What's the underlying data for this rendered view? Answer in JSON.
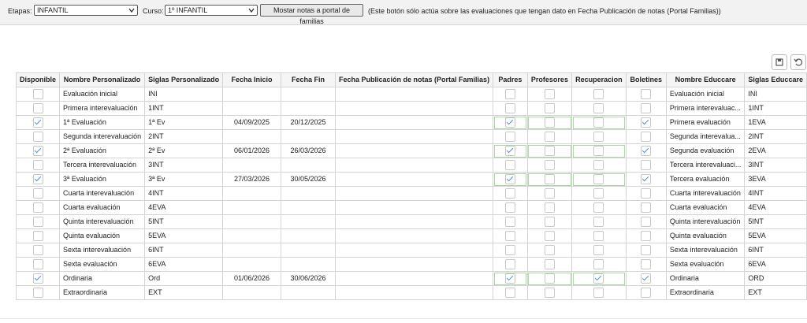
{
  "toolbar": {
    "etapas_label": "Etapas:",
    "etapas_value": "INFANTIL",
    "curso_label": "Curso:",
    "curso_value": "1º INFANTIL",
    "button": "Mostar notas a portal de familias",
    "note": "(Este botón sólo actúa sobre las evaluaciones que tengan dato en Fecha Publicación de notas (Portal Familias))"
  },
  "table": {
    "columns": [
      "Disponible",
      "Nombre Personalizado",
      "Siglas Personalizado",
      "Fecha Inicio",
      "Fecha Fin",
      "Fecha Publicación de notas (Portal Familias)",
      "Padres",
      "Profesores",
      "Recuperacion",
      "Boletines",
      "Nombre Educcare",
      "Siglas Educcare"
    ],
    "rows": [
      {
        "disponible": false,
        "nombre": "Evaluación inicial",
        "siglas": "INI",
        "padres": false,
        "profesores": false,
        "recuperacion": false,
        "boletines": false,
        "nombre_educcare": "Evaluación inicial",
        "siglas_educcare": "INI"
      },
      {
        "disponible": false,
        "nombre": "Primera interevaluación",
        "siglas": "1INT",
        "padres": false,
        "profesores": false,
        "recuperacion": false,
        "boletines": false,
        "nombre_educcare": "Primera interevaluac...",
        "siglas_educcare": "1INT"
      },
      {
        "disponible": true,
        "nombre": "1ª Evaluación",
        "siglas": "1ª Ev",
        "fecha_inicio": "04/09/2025",
        "fecha_fin": "20/12/2025",
        "padres": true,
        "profesores": false,
        "recuperacion": false,
        "boletines": true,
        "nombre_educcare": "Primera evaluación",
        "siglas_educcare": "1EVA"
      },
      {
        "disponible": false,
        "nombre": "Segunda interevaluación",
        "siglas": "2INT",
        "padres": false,
        "profesores": false,
        "recuperacion": false,
        "boletines": false,
        "nombre_educcare": "Segunda interevalua...",
        "siglas_educcare": "2INT"
      },
      {
        "disponible": true,
        "nombre": "2ª Evaluación",
        "siglas": "2ª Ev",
        "fecha_inicio": "06/01/2026",
        "fecha_fin": "26/03/2026",
        "padres": true,
        "profesores": false,
        "recuperacion": false,
        "boletines": true,
        "nombre_educcare": "Segunda evaluación",
        "siglas_educcare": "2EVA"
      },
      {
        "disponible": false,
        "nombre": "Tercera interevaluación",
        "siglas": "3INT",
        "padres": false,
        "profesores": false,
        "recuperacion": false,
        "boletines": false,
        "nombre_educcare": "Tercera interevaluaci...",
        "siglas_educcare": "3INT"
      },
      {
        "disponible": true,
        "nombre": "3ª Evaluación",
        "siglas": "3ª Ev",
        "fecha_inicio": "27/03/2026",
        "fecha_fin": "30/05/2026",
        "padres": true,
        "profesores": false,
        "recuperacion": false,
        "boletines": true,
        "nombre_educcare": "Tercera evaluación",
        "siglas_educcare": "3EVA"
      },
      {
        "disponible": false,
        "nombre": "Cuarta interevaluación",
        "siglas": "4INT",
        "padres": false,
        "profesores": false,
        "recuperacion": false,
        "boletines": false,
        "nombre_educcare": "Cuarta interevaluación",
        "siglas_educcare": "4INT"
      },
      {
        "disponible": false,
        "nombre": "Cuarta evaluación",
        "siglas": "4EVA",
        "padres": false,
        "profesores": false,
        "recuperacion": false,
        "boletines": false,
        "nombre_educcare": "Cuarta evaluación",
        "siglas_educcare": "4EVA"
      },
      {
        "disponible": false,
        "nombre": "Quinta interevaluación",
        "siglas": "5INT",
        "padres": false,
        "profesores": false,
        "recuperacion": false,
        "boletines": false,
        "nombre_educcare": "Quinta interevaluación",
        "siglas_educcare": "5INT"
      },
      {
        "disponible": false,
        "nombre": "Quinta evaluación",
        "siglas": "5EVA",
        "padres": false,
        "profesores": false,
        "recuperacion": false,
        "boletines": false,
        "nombre_educcare": "Quinta evaluación",
        "siglas_educcare": "5EVA"
      },
      {
        "disponible": false,
        "nombre": "Sexta interevaluación",
        "siglas": "6INT",
        "padres": false,
        "profesores": false,
        "recuperacion": false,
        "boletines": false,
        "nombre_educcare": "Sexta interevaluación",
        "siglas_educcare": "6INT"
      },
      {
        "disponible": false,
        "nombre": "Sexta evaluación",
        "siglas": "6EVA",
        "padres": false,
        "profesores": false,
        "recuperacion": false,
        "boletines": false,
        "nombre_educcare": "Sexta evaluación",
        "siglas_educcare": "6EVA"
      },
      {
        "disponible": true,
        "nombre": "Ordinaria",
        "siglas": "Ord",
        "fecha_inicio": "01/06/2026",
        "fecha_fin": "30/06/2026",
        "padres": true,
        "profesores": false,
        "recuperacion": true,
        "boletines": true,
        "nombre_educcare": "Ordinaria",
        "siglas_educcare": "ORD"
      },
      {
        "disponible": false,
        "nombre": "Extraordinaria",
        "siglas": "EXT",
        "padres": false,
        "profesores": false,
        "recuperacion": false,
        "boletines": false,
        "nombre_educcare": "Extraordinaria",
        "siglas_educcare": "EXT"
      }
    ]
  }
}
